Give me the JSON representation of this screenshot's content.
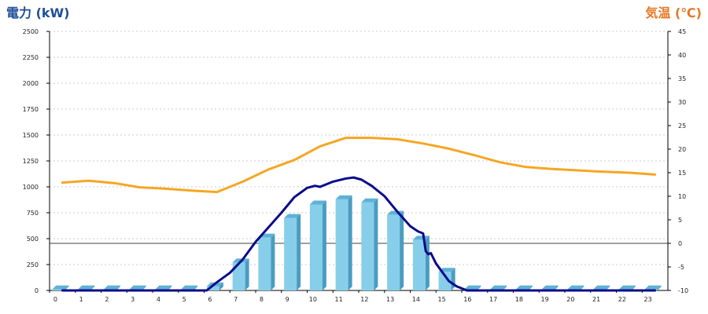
{
  "chart_data": {
    "type": "bar",
    "ylabel_left": "電力 (kW)",
    "ylabel_right": "気温 (℃)",
    "colors": {
      "left_title": "#1F4E9A",
      "right_title": "#E87722",
      "bars": "#87CEEB",
      "bars_side": "#4A9CC0",
      "bars_top": "#5FB1D6",
      "power_line": "#0B0B8C",
      "temp_line": "#F5A623",
      "zero_line": "#000000",
      "grid": "#BBBBBB"
    },
    "grid": true,
    "categories": [
      "0",
      "1",
      "2",
      "3",
      "4",
      "5",
      "6",
      "7",
      "8",
      "9",
      "10",
      "11",
      "12",
      "13",
      "14",
      "15",
      "16",
      "17",
      "18",
      "19",
      "20",
      "21",
      "22",
      "23"
    ],
    "yticks_left": [
      "0",
      "250",
      "500",
      "750",
      "1000",
      "1250",
      "1500",
      "1750",
      "2000",
      "2250",
      "2500"
    ],
    "yticks_right": [
      "-10",
      "-5",
      "0",
      "5",
      "10",
      "15",
      "20",
      "25",
      "30",
      "35",
      "40",
      "45"
    ],
    "ylim_left": [
      0,
      2500
    ],
    "ylim_right": [
      -10,
      45
    ],
    "series": [
      {
        "type": "bar",
        "axis": "left",
        "values": [
          10,
          10,
          10,
          10,
          10,
          10,
          40,
          270,
          510,
          700,
          830,
          880,
          850,
          730,
          490,
          180,
          10,
          10,
          10,
          10,
          10,
          10,
          10,
          10
        ]
      },
      {
        "type": "line",
        "axis": "left",
        "x": [
          0,
          5.6,
          6,
          6.5,
          7,
          7.5,
          8,
          8.5,
          9,
          9.5,
          9.8,
          10,
          10.5,
          11,
          11.3,
          11.6,
          12,
          12.5,
          13,
          13.5,
          13.8,
          14,
          14.1,
          14.2,
          14.3,
          14.5,
          15,
          15.3,
          15.5,
          15.7,
          16,
          23
        ],
        "values": [
          0,
          0,
          80,
          170,
          300,
          470,
          610,
          750,
          900,
          990,
          1010,
          1000,
          1050,
          1080,
          1090,
          1070,
          1010,
          910,
          760,
          620,
          570,
          550,
          380,
          350,
          360,
          260,
          90,
          40,
          20,
          0,
          0,
          0
        ]
      },
      {
        "type": "line",
        "axis": "right",
        "x": [
          0,
          1,
          2,
          3,
          4,
          5,
          6,
          7,
          8,
          9,
          10,
          11,
          12,
          13,
          14,
          15,
          16,
          17,
          18,
          19,
          20,
          21,
          22,
          23
        ],
        "values": [
          12.9,
          13.3,
          12.8,
          11.9,
          11.6,
          11.2,
          10.9,
          13.1,
          15.7,
          17.7,
          20.6,
          22.4,
          22.4,
          22.1,
          21.2,
          20.1,
          18.7,
          17.2,
          16.2,
          15.8,
          15.5,
          15.2,
          15.0,
          14.6
        ]
      }
    ]
  }
}
